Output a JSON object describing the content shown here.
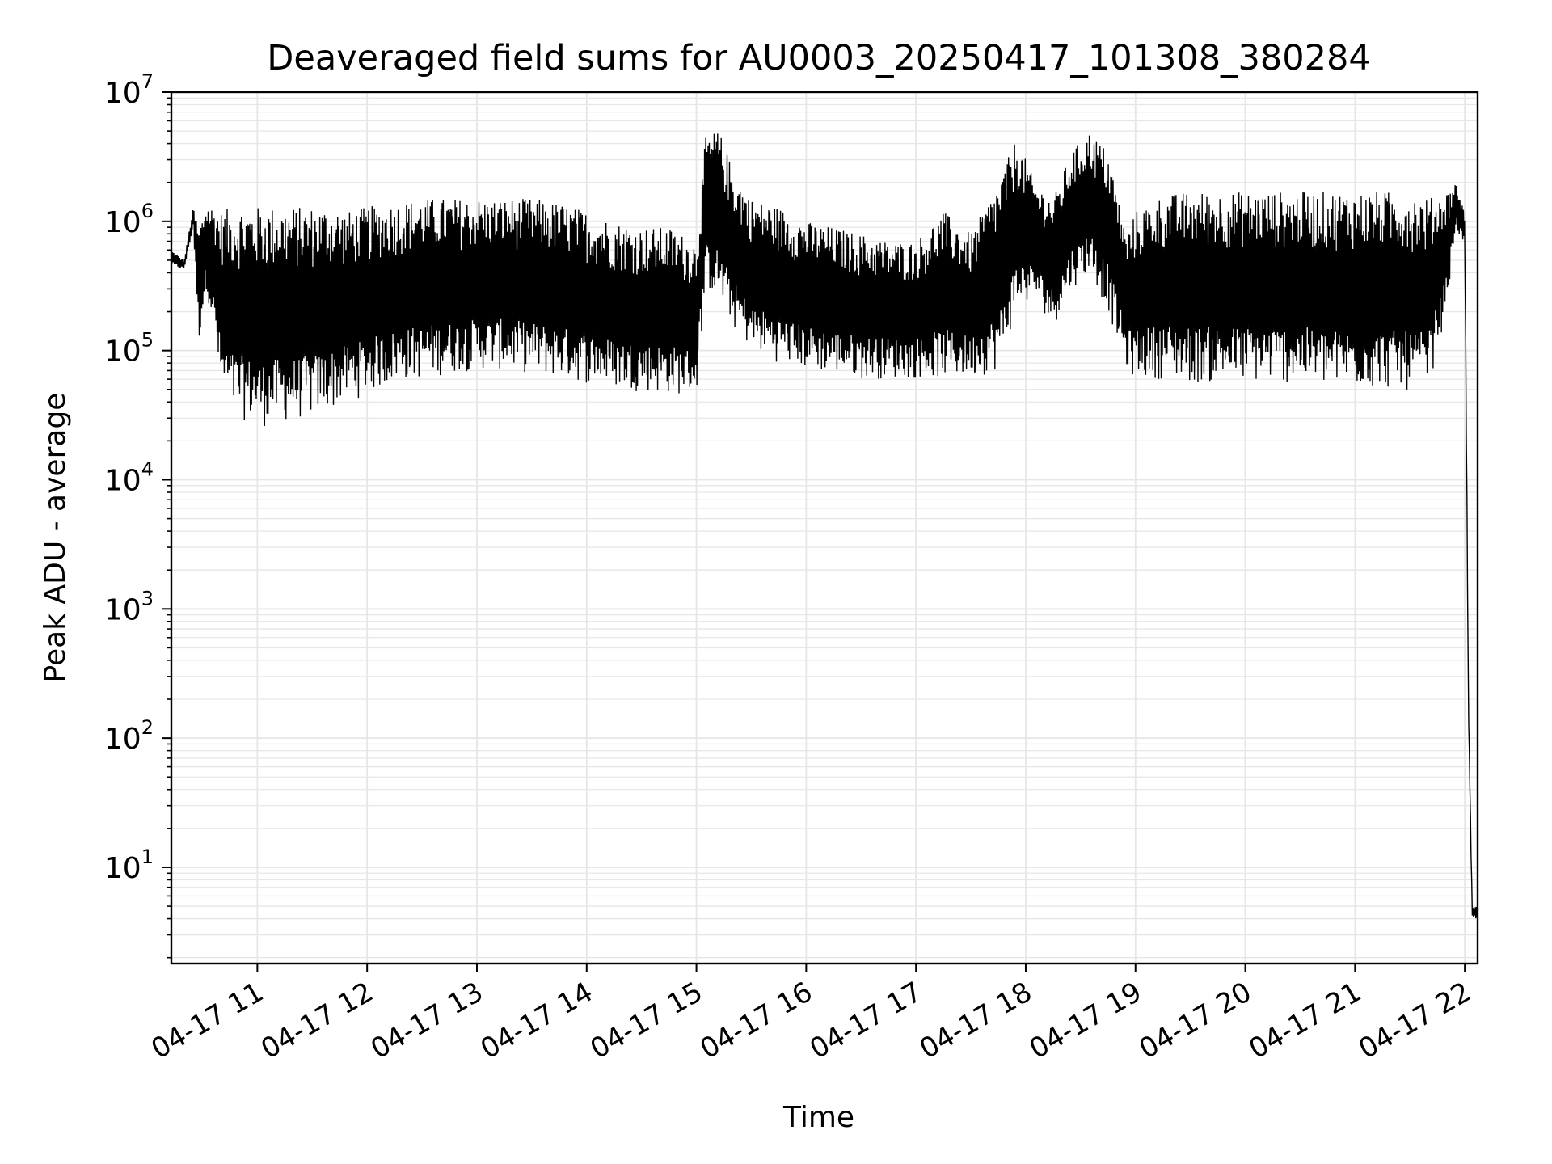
{
  "chart_data": {
    "type": "line",
    "title": "Deaveraged field sums for AU0003_20250417_101308_380284",
    "xlabel": "Time",
    "ylabel": "Peak ADU - average",
    "yscale": "log",
    "ylim": [
      1.8,
      10000000
    ],
    "xlim": [
      "04-17 10:13",
      "04-17 22:07"
    ],
    "grid": true,
    "line_color": "#000000",
    "grid_color": "#e6e6e6",
    "x_ticks": [
      "04-17 11",
      "04-17 12",
      "04-17 13",
      "04-17 14",
      "04-17 15",
      "04-17 16",
      "04-17 17",
      "04-17 18",
      "04-17 19",
      "04-17 20",
      "04-17 21",
      "04-17 22"
    ],
    "y_ticks": [
      {
        "base": "10",
        "exp": "1",
        "value": 10
      },
      {
        "base": "10",
        "exp": "2",
        "value": 100
      },
      {
        "base": "10",
        "exp": "3",
        "value": 1000
      },
      {
        "base": "10",
        "exp": "4",
        "value": 10000
      },
      {
        "base": "10",
        "exp": "5",
        "value": 100000
      },
      {
        "base": "10",
        "exp": "6",
        "value": 1000000
      },
      {
        "base": "10",
        "exp": "7",
        "value": 10000000
      }
    ],
    "series": [
      {
        "x": [
          "04-17 10:13",
          "04-17 10:20",
          "04-17 10:25",
          "04-17 10:28",
          "04-17 10:32",
          "04-17 10:37",
          "04-17 10:40",
          "04-17 10:48",
          "04-17 10:55",
          "04-17 11:02",
          "04-17 11:10",
          "04-17 11:20",
          "04-17 11:30",
          "04-17 11:42",
          "04-17 11:50",
          "04-17 12:00",
          "04-17 12:15",
          "04-17 12:30",
          "04-17 12:45",
          "04-17 13:00",
          "04-17 13:15",
          "04-17 13:30",
          "04-17 13:45",
          "04-17 14:00",
          "04-17 14:15",
          "04-17 14:30",
          "04-17 14:45",
          "04-17 15:00",
          "04-17 15:05",
          "04-17 15:12",
          "04-17 15:20",
          "04-17 15:30",
          "04-17 15:45",
          "04-17 16:00",
          "04-17 16:15",
          "04-17 16:30",
          "04-17 16:45",
          "04-17 17:00",
          "04-17 17:15",
          "04-17 17:30",
          "04-17 17:45",
          "04-17 17:55",
          "04-17 18:05",
          "04-17 18:15",
          "04-17 18:25",
          "04-17 18:35",
          "04-17 18:45",
          "04-17 18:55",
          "04-17 19:00",
          "04-17 19:15",
          "04-17 19:30",
          "04-17 19:45",
          "04-17 20:00",
          "04-17 20:15",
          "04-17 20:30",
          "04-17 20:45",
          "04-17 21:00",
          "04-17 21:15",
          "04-17 21:30",
          "04-17 21:40",
          "04-17 21:50",
          "04-17 21:55",
          "04-17 22:00",
          "04-17 22:02",
          "04-17 22:04",
          "04-17 22:07"
        ],
        "y_upper": [
          600000,
          500000,
          1300000,
          900000,
          1400000,
          1300000,
          1200000,
          1300000,
          1300000,
          1300000,
          1300000,
          1300000,
          1300000,
          1300000,
          1200000,
          1300000,
          1400000,
          1500000,
          1500000,
          1500000,
          1500000,
          1500000,
          1400000,
          1200000,
          1000000,
          900000,
          900000,
          700000,
          4500000,
          5200000,
          2500000,
          1500000,
          1300000,
          1000000,
          900000,
          800000,
          700000,
          700000,
          1200000,
          800000,
          2000000,
          4500000,
          2000000,
          1500000,
          3500000,
          5000000,
          3500000,
          800000,
          1200000,
          1600000,
          1700000,
          1700000,
          1700000,
          1700000,
          1700000,
          1700000,
          1700000,
          1700000,
          1700000,
          1500000,
          1700000,
          2000000,
          1200000,
          200,
          5,
          5
        ],
        "y_lower": [
          450000,
          420000,
          900000,
          110000,
          300000,
          120000,
          45000,
          30000,
          28000,
          25000,
          27000,
          28000,
          30000,
          35000,
          40000,
          45000,
          55000,
          60000,
          65000,
          70000,
          70000,
          65000,
          60000,
          55000,
          50000,
          48000,
          45000,
          45000,
          300000,
          250000,
          150000,
          100000,
          80000,
          70000,
          65000,
          60000,
          60000,
          60000,
          60000,
          60000,
          70000,
          200000,
          250000,
          150000,
          300000,
          400000,
          200000,
          70000,
          60000,
          60000,
          55000,
          55000,
          55000,
          55000,
          55000,
          50000,
          50000,
          50000,
          48000,
          50000,
          200000,
          900000,
          600000,
          150,
          4,
          4
        ]
      }
    ]
  }
}
